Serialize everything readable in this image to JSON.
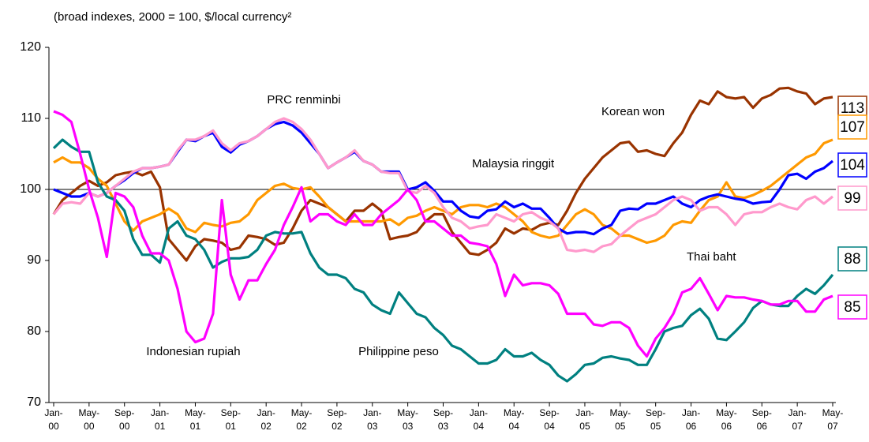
{
  "chart_data": {
    "type": "line",
    "title": "(broad indexes, 2000 = 100, $/local currency²",
    "categories": [
      "Jan-00",
      null,
      null,
      null,
      "May-00",
      null,
      null,
      null,
      "Sep-00",
      null,
      null,
      null,
      "Jan-01",
      null,
      null,
      null,
      "May-01",
      null,
      null,
      null,
      "Sep-01",
      null,
      null,
      null,
      "Jan-02",
      null,
      null,
      null,
      "May-02",
      null,
      null,
      null,
      "Sep-02",
      null,
      null,
      null,
      "Jan-03",
      null,
      null,
      null,
      "May-03",
      null,
      null,
      null,
      "Sep-03",
      null,
      null,
      null,
      "Jan-04",
      null,
      null,
      null,
      "May-04",
      null,
      null,
      null,
      "Sep-04",
      null,
      null,
      null,
      "Jan-05",
      null,
      null,
      null,
      "May-05",
      null,
      null,
      null,
      "Sep-05",
      null,
      null,
      null,
      "Jan-06",
      null,
      null,
      null,
      "May-06",
      null,
      null,
      null,
      "Sep-06",
      null,
      null,
      null,
      "Jan-07",
      null,
      null,
      null,
      "May-07"
    ],
    "ylim": [
      70,
      120
    ],
    "yticks": [
      70,
      80,
      90,
      100,
      110,
      120
    ],
    "reference_line": 100,
    "series": [
      {
        "name": "Korean won",
        "color": "#993300",
        "values": [
          96.5,
          98.5,
          99.5,
          100.5,
          101.2,
          100.5,
          101,
          102,
          102.3,
          102.5,
          102,
          102.5,
          100.3,
          93,
          91.5,
          90,
          92,
          93,
          92.8,
          92.5,
          91.5,
          91.8,
          93.5,
          93.3,
          93,
          92.2,
          92.5,
          94.5,
          97,
          98.5,
          98,
          97.5,
          96.5,
          95.5,
          97,
          97,
          98,
          97,
          93,
          93.3,
          93.5,
          94,
          95.5,
          96.5,
          96.5,
          94,
          92.5,
          91,
          90.8,
          91.5,
          92.5,
          94.5,
          93.8,
          94.5,
          94.3,
          95,
          95.3,
          95,
          97,
          99.5,
          101.5,
          103,
          104.5,
          105.5,
          106.5,
          106.7,
          105.3,
          105.5,
          105,
          104.7,
          106.5,
          108,
          110.5,
          112.5,
          112,
          113.8,
          113,
          112.8,
          113,
          111.5,
          112.8,
          113.3,
          114.2,
          114.3,
          113.8,
          113.5,
          112,
          112.8,
          113
        ]
      },
      {
        "name": "Thai baht",
        "color": "#FF9900",
        "values": [
          103.8,
          104.5,
          103.8,
          103.8,
          103,
          101.5,
          100.5,
          98,
          95.5,
          94.2,
          95.5,
          96,
          96.5,
          97.3,
          96.5,
          94.5,
          94,
          95.3,
          95,
          94.8,
          95.3,
          95.5,
          96.5,
          98.5,
          99.5,
          100.5,
          100.8,
          100.2,
          100,
          100.3,
          99,
          97.5,
          96.5,
          95.5,
          95.5,
          95.5,
          95.5,
          95.5,
          95.8,
          95,
          96,
          96.3,
          97,
          97.5,
          97,
          96.5,
          97.5,
          97.8,
          97.8,
          97.5,
          98,
          97.5,
          96.5,
          95.5,
          94,
          93.5,
          93.2,
          93.5,
          95,
          96.5,
          97.2,
          96.5,
          95,
          94.5,
          93.5,
          93.5,
          93,
          92.5,
          92.8,
          93.5,
          95,
          95.5,
          95.3,
          97,
          98.5,
          99,
          101,
          99,
          98.8,
          99.2,
          99.8,
          100.5,
          101.5,
          102.5,
          103.5,
          104.5,
          105,
          106.5,
          107
        ]
      },
      {
        "name": "Malaysia ringgit",
        "color": "#0000FF",
        "values": [
          100,
          99.5,
          99,
          99,
          99.5,
          99,
          99.5,
          100.5,
          101.3,
          102.3,
          103,
          103,
          103.2,
          103.5,
          105.3,
          107,
          106.8,
          107.5,
          108,
          106,
          105.2,
          106.3,
          106.8,
          107.5,
          108.5,
          109.2,
          109.5,
          109,
          108,
          106.5,
          105,
          103,
          103.8,
          104.5,
          105.3,
          104,
          103.5,
          102.5,
          102.5,
          102.5,
          100,
          100.3,
          101,
          99.8,
          98.3,
          98.3,
          97,
          96.2,
          96,
          97,
          97.2,
          98.3,
          97.5,
          98,
          97.3,
          97.3,
          96,
          94.5,
          93.8,
          94,
          94,
          93.7,
          94.5,
          95,
          97,
          97.3,
          97.2,
          98,
          98,
          98.5,
          99,
          98,
          97.5,
          98.5,
          99,
          99.3,
          99,
          98.7,
          98.5,
          98,
          98.2,
          98.3,
          100,
          102,
          102.2,
          101.5,
          102.5,
          103,
          104
        ]
      },
      {
        "name": "PRC renminbi",
        "color": "#FF99CC",
        "values": [
          96.5,
          98,
          98.2,
          98,
          99.5,
          99,
          99.5,
          100.5,
          101.5,
          102.5,
          103,
          103,
          103.2,
          103.5,
          105.5,
          107,
          107,
          107.5,
          108.3,
          106.5,
          105.5,
          106.5,
          106.8,
          107.5,
          108.5,
          109.5,
          110,
          109.5,
          108.5,
          107,
          105,
          103,
          103.8,
          104.5,
          105.5,
          104,
          103.5,
          102.5,
          102.3,
          102.3,
          99.8,
          99.5,
          100.5,
          99.5,
          97.5,
          96,
          95.5,
          94.5,
          94.8,
          95,
          96.5,
          96,
          95.5,
          96.5,
          96.8,
          96,
          95.5,
          94.5,
          91.5,
          91.3,
          91.5,
          91.2,
          92,
          92.3,
          93.5,
          94.5,
          95.5,
          96,
          96.5,
          97.5,
          98.5,
          99,
          98.5,
          97,
          97.5,
          97.5,
          96.5,
          95,
          96.5,
          96.8,
          96.8,
          97.5,
          98,
          97.5,
          97.2,
          98.5,
          99,
          98,
          99
        ]
      },
      {
        "name": "Philippine peso",
        "color": "#008080",
        "values": [
          105.8,
          107,
          106,
          105.3,
          105.3,
          101,
          99,
          98.5,
          97,
          93,
          90.8,
          90.8,
          89.7,
          94.5,
          95.5,
          93.5,
          93,
          91.5,
          89,
          89.8,
          90.3,
          90.3,
          90.5,
          91.5,
          93.5,
          94,
          93.8,
          93.8,
          94,
          91,
          89,
          88,
          88,
          87.5,
          86,
          85.5,
          83.8,
          83,
          82.5,
          85.5,
          84,
          82.5,
          82,
          80.5,
          79.5,
          78,
          77.5,
          76.5,
          75.5,
          75.5,
          76,
          77.5,
          76.5,
          76.5,
          77,
          76,
          75.3,
          73.8,
          73,
          74,
          75.3,
          75.5,
          76.3,
          76.5,
          76.2,
          76,
          75.3,
          75.3,
          77.5,
          80,
          80.5,
          80.8,
          82.3,
          83.2,
          81.8,
          79,
          78.8,
          80,
          81.3,
          83.3,
          84.3,
          83.8,
          83.6,
          83.6,
          85,
          86,
          85.3,
          86.5,
          88
        ]
      },
      {
        "name": "Indonesian rupiah",
        "color": "#FF00FF",
        "values": [
          111,
          110.5,
          109.5,
          105,
          100,
          96,
          90.5,
          99.5,
          99,
          97.5,
          93.5,
          91,
          91,
          90,
          86,
          80,
          78.5,
          79,
          82.5,
          98.5,
          88,
          84.5,
          87.2,
          87.2,
          89.5,
          91.5,
          95,
          97.5,
          100.3,
          95.5,
          96.5,
          96.5,
          95.5,
          95,
          96.5,
          95,
          95,
          96.5,
          97.5,
          98.5,
          100,
          98.5,
          95.5,
          95.5,
          94.5,
          93.5,
          93.5,
          92.5,
          92.3,
          92,
          89.5,
          85,
          88,
          86.5,
          86.8,
          86.8,
          86.5,
          85.3,
          82.5,
          82.5,
          82.5,
          81,
          80.8,
          81.3,
          81.3,
          80.5,
          78,
          76.5,
          79,
          80.5,
          82.5,
          85.5,
          86,
          87.5,
          85.3,
          83,
          85,
          84.8,
          84.8,
          84.5,
          84.3,
          83.8,
          83.8,
          84.3,
          84.3,
          82.8,
          82.8,
          84.5,
          85
        ]
      }
    ]
  }
}
